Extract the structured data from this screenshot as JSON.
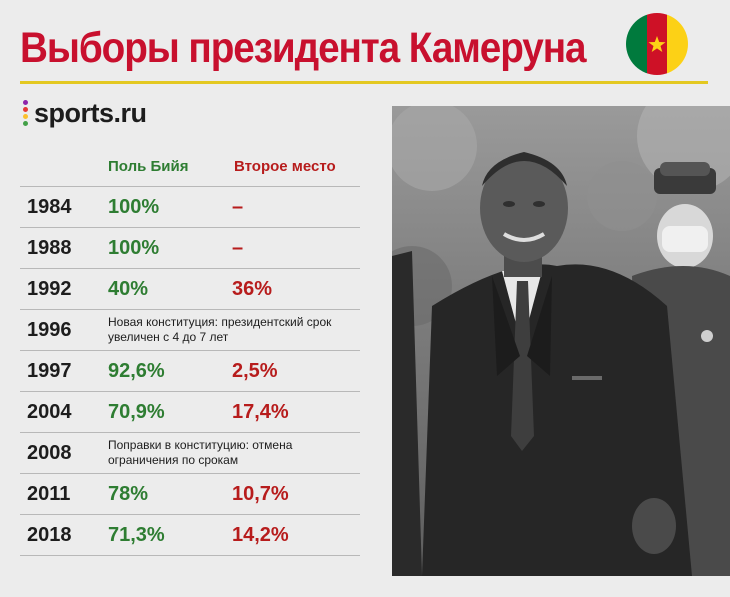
{
  "header": {
    "title": "Выборы президента Камеруна",
    "logo_text": "sports.ru"
  },
  "colors": {
    "title_red": "#c8102e",
    "green": "#2e7d32",
    "red": "#b71c1c",
    "rule_yellow": "#e3c821",
    "flag_green": "#007a3d",
    "flag_red": "#ce1126",
    "flag_yellow": "#fcd116"
  },
  "table": {
    "col_biya": "Поль Бийя",
    "col_second": "Второе место",
    "rows": [
      {
        "year": "1984",
        "biya": "100%",
        "second": "–",
        "note": ""
      },
      {
        "year": "1988",
        "biya": "100%",
        "second": "–",
        "note": ""
      },
      {
        "year": "1992",
        "biya": "40%",
        "second": "36%",
        "note": ""
      },
      {
        "year": "1996",
        "biya": "",
        "second": "",
        "note": "Новая конституция: президентский срок увеличен с 4 до 7 лет"
      },
      {
        "year": "1997",
        "biya": "92,6%",
        "second": "2,5%",
        "note": ""
      },
      {
        "year": "2004",
        "biya": "70,9%",
        "second": "17,4%",
        "note": ""
      },
      {
        "year": "2008",
        "biya": "",
        "second": "",
        "note": "Поправки в конституцию: отмена ограничения по срокам"
      },
      {
        "year": "2011",
        "biya": "78%",
        "second": "10,7%",
        "note": ""
      },
      {
        "year": "2018",
        "biya": "71,3%",
        "second": "14,2%",
        "note": ""
      }
    ]
  },
  "icons": {
    "flag": "cameroon-flag-icon",
    "logo": "sports-ru-dots-icon",
    "photo": "president-photo"
  }
}
